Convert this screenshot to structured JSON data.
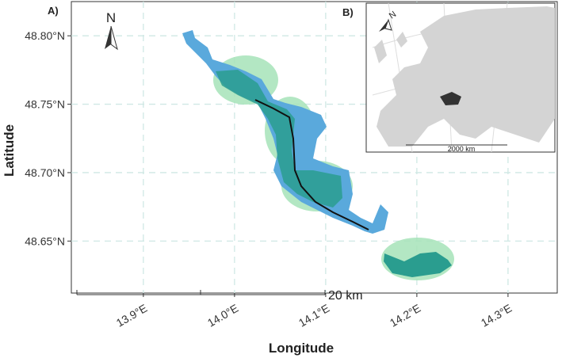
{
  "panel_a": {
    "label": "A)",
    "north": "N",
    "scale_label": "20 km",
    "x_axis_label": "Longitude",
    "y_axis_label": "Latitude",
    "xlim": [
      13.821,
      14.354
    ],
    "ylim": [
      48.612,
      48.825
    ],
    "xticks": [
      {
        "value": 13.9,
        "label": "13.9°E"
      },
      {
        "value": 14.0,
        "label": "14.0°E"
      },
      {
        "value": 14.1,
        "label": "14.1°E"
      },
      {
        "value": 14.2,
        "label": "14.2°E"
      },
      {
        "value": 14.3,
        "label": "14.3°E"
      }
    ],
    "yticks": [
      {
        "value": 48.65,
        "label": "48.65°N"
      },
      {
        "value": 48.7,
        "label": "48.70°N"
      },
      {
        "value": 48.75,
        "label": "48.75°N"
      },
      {
        "value": 48.8,
        "label": "48.80°N"
      }
    ]
  },
  "panel_b": {
    "label": "B)",
    "north": "N",
    "scale_label": "2000 km"
  }
}
